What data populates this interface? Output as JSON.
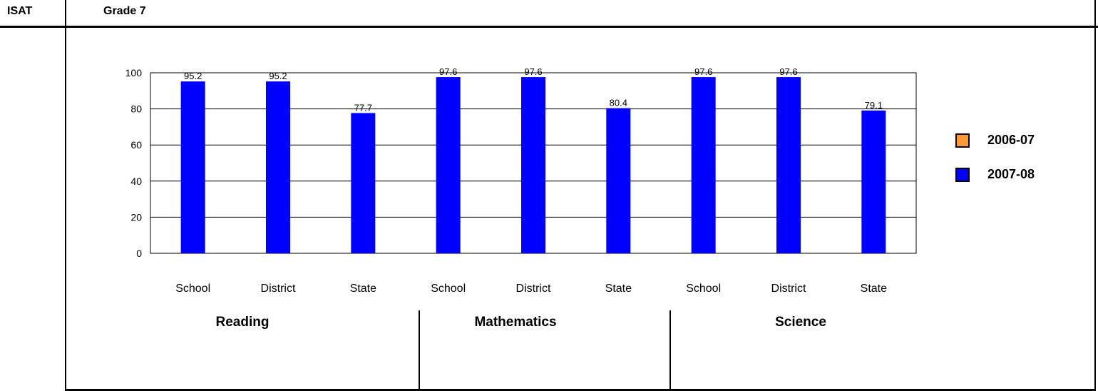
{
  "header": {
    "test": "ISAT",
    "grade": "Grade 7"
  },
  "colors": {
    "series_2006_07": "#ff9933",
    "series_2007_08": "#0000ff"
  },
  "legend": [
    {
      "label": "2006-07",
      "color": "#ff9933"
    },
    {
      "label": "2007-08",
      "color": "#0000ff"
    }
  ],
  "groups": [
    "Reading",
    "Mathematics",
    "Science"
  ],
  "chart_data": {
    "type": "bar",
    "title": "",
    "xlabel": "",
    "ylabel": "",
    "ylim": [
      0,
      100
    ],
    "yticks": [
      0,
      20,
      40,
      60,
      80,
      100
    ],
    "grid": true,
    "legend_position": "right",
    "categories": [
      "School",
      "District",
      "State",
      "School",
      "District",
      "State",
      "School",
      "District",
      "State"
    ],
    "group_of_category": [
      "Reading",
      "Reading",
      "Reading",
      "Mathematics",
      "Mathematics",
      "Mathematics",
      "Science",
      "Science",
      "Science"
    ],
    "series": [
      {
        "name": "2006-07",
        "values": [
          null,
          null,
          null,
          null,
          null,
          null,
          null,
          null,
          null
        ]
      },
      {
        "name": "2007-08",
        "values": [
          95.2,
          95.2,
          77.7,
          97.6,
          97.6,
          80.4,
          97.6,
          97.6,
          79.1
        ]
      }
    ],
    "data_labels": [
      "95.2",
      "95.2",
      "77.7",
      "97.6",
      "97.6",
      "80.4",
      "97.6",
      "97.6",
      "79.1"
    ]
  }
}
